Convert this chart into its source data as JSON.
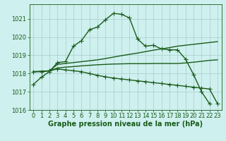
{
  "title": "Graphe pression niveau de la mer (hPa)",
  "background_color": "#cef0ee",
  "grid_color": "#aacccc",
  "line_color": "#1a5c1a",
  "ylim": [
    1016.0,
    1021.8
  ],
  "yticks": [
    1016,
    1017,
    1018,
    1019,
    1020,
    1021
  ],
  "xlim": [
    -0.5,
    23.5
  ],
  "xticks": [
    0,
    1,
    2,
    3,
    4,
    5,
    6,
    7,
    8,
    9,
    10,
    11,
    12,
    13,
    14,
    15,
    16,
    17,
    18,
    19,
    20,
    21,
    22,
    23
  ],
  "series": [
    {
      "x": [
        0,
        1,
        2,
        3,
        4,
        5,
        6,
        7,
        8,
        9,
        10,
        11,
        12,
        13,
        14,
        15,
        16,
        17,
        18,
        19,
        20,
        21,
        22,
        23
      ],
      "y": [
        1017.4,
        1017.8,
        1018.1,
        1018.6,
        1018.65,
        1019.5,
        1019.8,
        1020.4,
        1020.55,
        1020.95,
        1021.3,
        1021.25,
        1021.05,
        1019.9,
        1019.5,
        1019.55,
        1019.35,
        1019.3,
        1019.3,
        1018.8,
        1017.95,
        1017.0,
        1016.35,
        null
      ],
      "marker": true
    },
    {
      "x": [
        0,
        1,
        2,
        3,
        4,
        5,
        6,
        7,
        8,
        9,
        10,
        11,
        12,
        13,
        14,
        15,
        16,
        17,
        18,
        19,
        20,
        21,
        22,
        23
      ],
      "y": [
        1018.1,
        1018.12,
        1018.15,
        1018.5,
        1018.55,
        1018.6,
        1018.65,
        1018.7,
        1018.75,
        1018.82,
        1018.9,
        1018.98,
        1019.05,
        1019.12,
        1019.2,
        1019.28,
        1019.35,
        1019.42,
        1019.5,
        1019.55,
        1019.6,
        1019.65,
        1019.7,
        1019.75
      ],
      "marker": false
    },
    {
      "x": [
        0,
        1,
        2,
        3,
        4,
        5,
        6,
        7,
        8,
        9,
        10,
        11,
        12,
        13,
        14,
        15,
        16,
        17,
        18,
        19,
        20,
        21,
        22,
        23
      ],
      "y": [
        1018.1,
        1018.12,
        1018.15,
        1018.3,
        1018.35,
        1018.38,
        1018.42,
        1018.45,
        1018.48,
        1018.5,
        1018.52,
        1018.53,
        1018.54,
        1018.54,
        1018.54,
        1018.55,
        1018.55,
        1018.55,
        1018.55,
        1018.58,
        1018.62,
        1018.67,
        1018.72,
        1018.75
      ],
      "marker": false
    },
    {
      "x": [
        0,
        1,
        2,
        3,
        4,
        5,
        6,
        7,
        8,
        9,
        10,
        11,
        12,
        13,
        14,
        15,
        16,
        17,
        18,
        19,
        20,
        21,
        22,
        23
      ],
      "y": [
        1018.1,
        1018.1,
        1018.15,
        1018.25,
        1018.2,
        1018.15,
        1018.1,
        1018.0,
        1017.9,
        1017.82,
        1017.75,
        1017.7,
        1017.65,
        1017.6,
        1017.55,
        1017.5,
        1017.45,
        1017.4,
        1017.35,
        1017.3,
        1017.25,
        1017.2,
        1017.15,
        1016.35
      ],
      "marker": true
    }
  ],
  "marker_symbol": "+",
  "markersize": 4,
  "linewidth": 1.0,
  "tick_fontsize": 6,
  "title_fontsize": 7,
  "title_fontweight": "bold"
}
